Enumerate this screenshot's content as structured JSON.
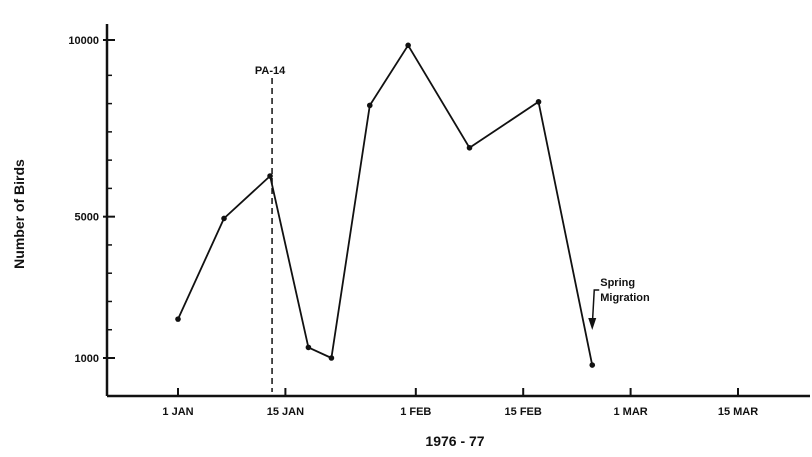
{
  "chart_data": {
    "type": "line",
    "title": "",
    "xlabel": "1976 - 77",
    "ylabel": "Number of Birds",
    "x_ticks": [
      "1 JAN",
      "15 JAN",
      "1 FEB",
      "15 FEB",
      "1 MAR",
      "15 MAR"
    ],
    "y_ticks": [
      "1000",
      "5000",
      "10000"
    ],
    "y_tick_values": [
      1000,
      5000,
      10000
    ],
    "ylim": [
      0,
      10000
    ],
    "series": [
      {
        "x": [
          "1 JAN",
          "7 JAN",
          "13 JAN",
          "18 JAN",
          "21 JAN",
          "26 JAN",
          "31 JAN",
          "8 FEB",
          "17 FEB",
          "24 FEB"
        ],
        "values": [
          2100,
          4950,
          6150,
          1300,
          1000,
          8150,
          9850,
          6950,
          8250,
          800
        ]
      }
    ],
    "annotations": [
      {
        "text": "PA-14",
        "x": "13 JAN",
        "style": "dashed vertical line"
      },
      {
        "text": "Spring",
        "text2": "Migration",
        "x": "24 FEB",
        "style": "arrow"
      }
    ],
    "grid": false,
    "line_color": "#111111"
  }
}
